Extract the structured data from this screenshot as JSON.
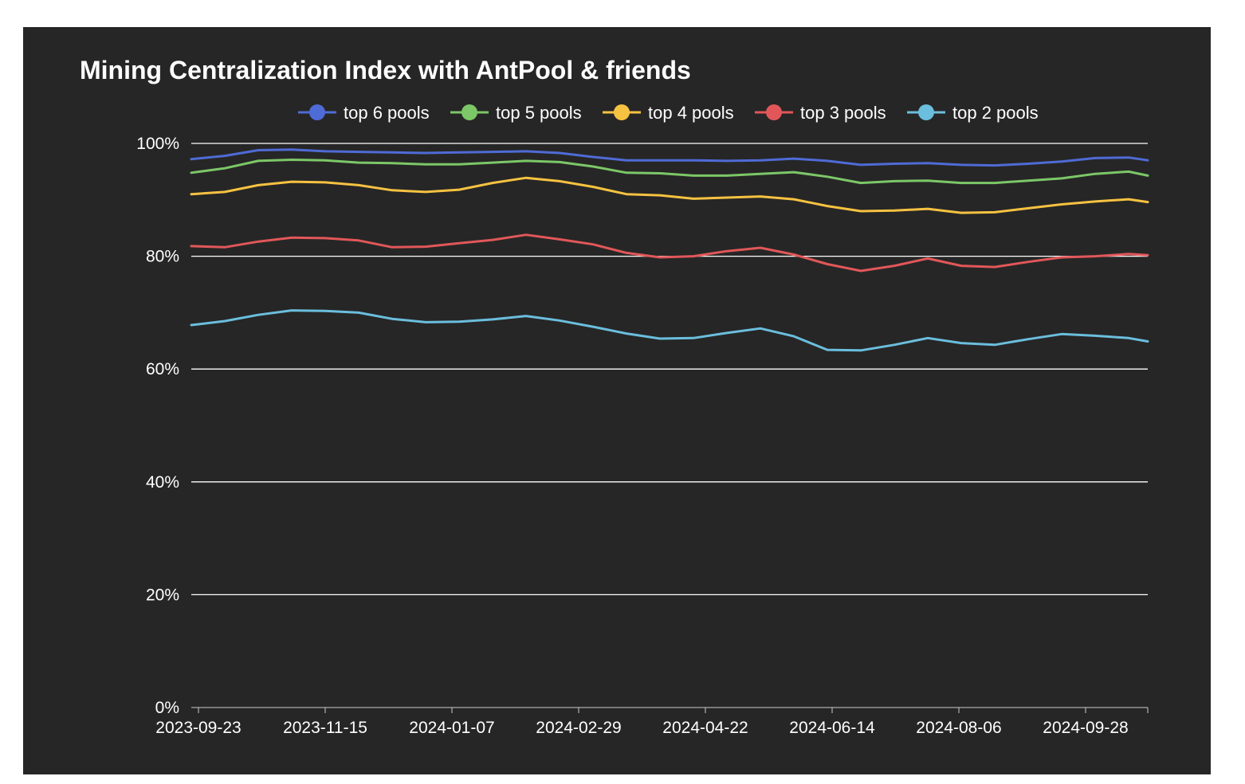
{
  "chart_data": {
    "type": "line",
    "title": "Mining Centralization Index with AntPool & friends",
    "xlabel": "",
    "ylabel": "",
    "x": [
      "2023-09-20",
      "2023-10-04",
      "2023-10-18",
      "2023-11-01",
      "2023-11-15",
      "2023-11-29",
      "2023-12-13",
      "2023-12-27",
      "2024-01-10",
      "2024-01-24",
      "2024-02-07",
      "2024-02-21",
      "2024-03-06",
      "2024-03-20",
      "2024-04-03",
      "2024-04-17",
      "2024-05-01",
      "2024-05-15",
      "2024-05-29",
      "2024-06-12",
      "2024-06-26",
      "2024-07-10",
      "2024-07-24",
      "2024-08-07",
      "2024-08-21",
      "2024-09-04",
      "2024-09-18",
      "2024-10-02",
      "2024-10-16",
      "2024-10-24"
    ],
    "x_ticks": [
      "2023-09-23",
      "2023-11-15",
      "2024-01-07",
      "2024-02-29",
      "2024-04-22",
      "2024-06-14",
      "2024-08-06",
      "2024-09-28"
    ],
    "y_ticks": [
      "0%",
      "20%",
      "40%",
      "60%",
      "80%",
      "100%"
    ],
    "ylim": [
      0,
      100
    ],
    "y_unit": "%",
    "grid": true,
    "legend_position": "top",
    "series": [
      {
        "name": "top 6 pools",
        "color": "#4f6bd6",
        "values": [
          97.2,
          97.8,
          98.8,
          98.9,
          98.6,
          98.5,
          98.4,
          98.3,
          98.4,
          98.5,
          98.6,
          98.3,
          97.6,
          97.0,
          97.0,
          97.0,
          96.9,
          97.0,
          97.3,
          96.9,
          96.2,
          96.4,
          96.5,
          96.2,
          96.1,
          96.4,
          96.8,
          97.4,
          97.5,
          97.0
        ]
      },
      {
        "name": "top 5 pools",
        "color": "#7cc767",
        "values": [
          94.8,
          95.6,
          96.9,
          97.1,
          97.0,
          96.6,
          96.5,
          96.3,
          96.3,
          96.6,
          96.9,
          96.7,
          95.9,
          94.8,
          94.7,
          94.3,
          94.3,
          94.6,
          94.9,
          94.1,
          93.0,
          93.3,
          93.4,
          93.0,
          93.0,
          93.4,
          93.8,
          94.6,
          95.0,
          94.3
        ]
      },
      {
        "name": "top 4 pools",
        "color": "#f6c241",
        "values": [
          91.0,
          91.4,
          92.6,
          93.2,
          93.1,
          92.6,
          91.7,
          91.4,
          91.8,
          93.0,
          93.9,
          93.3,
          92.3,
          91.0,
          90.8,
          90.2,
          90.4,
          90.6,
          90.1,
          88.9,
          88.0,
          88.1,
          88.4,
          87.7,
          87.8,
          88.5,
          89.2,
          89.7,
          90.1,
          89.6
        ]
      },
      {
        "name": "top 3 pools",
        "color": "#e15759",
        "values": [
          81.8,
          81.6,
          82.6,
          83.3,
          83.2,
          82.8,
          81.6,
          81.7,
          82.3,
          82.9,
          83.8,
          83.0,
          82.1,
          80.6,
          79.8,
          80.0,
          80.9,
          81.5,
          80.3,
          78.6,
          77.4,
          78.3,
          79.6,
          78.3,
          78.1,
          79.0,
          79.8,
          80.0,
          80.4,
          80.2
        ]
      },
      {
        "name": "top 2 pools",
        "color": "#6bbedd",
        "values": [
          67.8,
          68.5,
          69.6,
          70.4,
          70.3,
          70.0,
          68.9,
          68.3,
          68.4,
          68.8,
          69.4,
          68.6,
          67.5,
          66.3,
          65.4,
          65.5,
          66.4,
          67.2,
          65.8,
          63.4,
          63.3,
          64.3,
          65.5,
          64.6,
          64.3,
          65.3,
          66.2,
          65.9,
          65.5,
          64.9
        ]
      }
    ]
  }
}
